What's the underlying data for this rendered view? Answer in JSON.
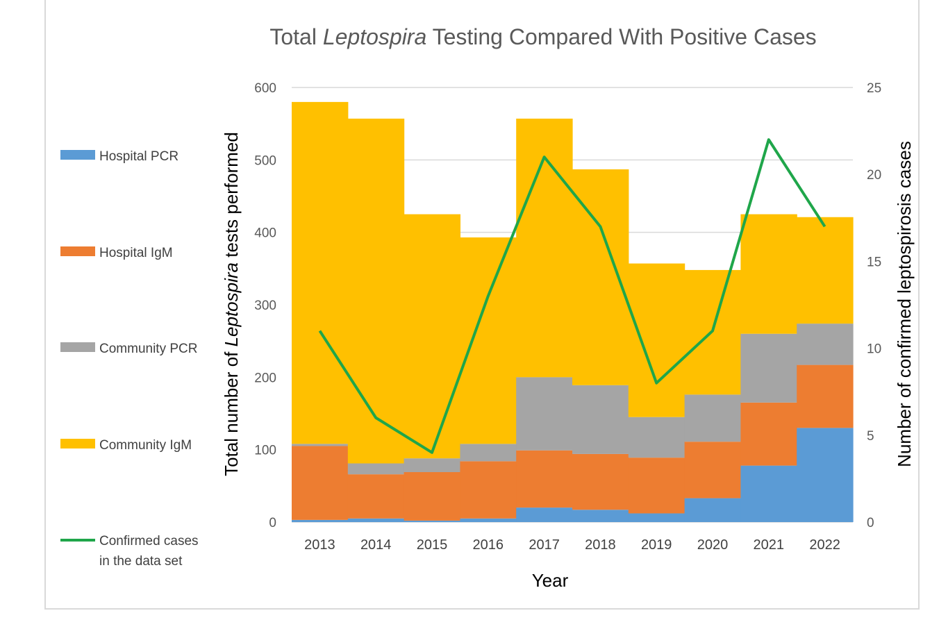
{
  "chart_data": {
    "type": "bar",
    "stacked": true,
    "title_parts": [
      {
        "text": "Total ",
        "italic": false
      },
      {
        "text": "Leptospira",
        "italic": true
      },
      {
        "text": " Testing Compared With Positive Cases",
        "italic": false
      }
    ],
    "xlabel": "Year",
    "ylabel_parts": [
      {
        "text": "Total number of ",
        "italic": false
      },
      {
        "text": "Leptospira",
        "italic": true
      },
      {
        "text": " tests performed",
        "italic": false
      }
    ],
    "y2label": "Number of confirmed leptospirosis cases",
    "categories": [
      "2013",
      "2014",
      "2015",
      "2016",
      "2017",
      "2018",
      "2019",
      "2020",
      "2021",
      "2022"
    ],
    "ylim": [
      0,
      600
    ],
    "yticks": [
      0,
      100,
      200,
      300,
      400,
      500,
      600
    ],
    "y2lim": [
      0,
      25
    ],
    "y2ticks": [
      0,
      5,
      10,
      15,
      20,
      25
    ],
    "grid": true,
    "legend_position": "left",
    "series": [
      {
        "name": "Hospital PCR",
        "kind": "bar",
        "color": "#5b9bd5",
        "values": [
          3,
          5,
          2,
          5,
          20,
          17,
          12,
          33,
          78,
          130
        ]
      },
      {
        "name": "Hospital IgM",
        "kind": "bar",
        "color": "#ed7d31",
        "values": [
          102,
          61,
          67,
          79,
          79,
          77,
          77,
          78,
          87,
          87
        ]
      },
      {
        "name": "Community PCR",
        "kind": "bar",
        "color": "#a5a5a5",
        "values": [
          3,
          15,
          19,
          24,
          101,
          95,
          56,
          65,
          95,
          57
        ]
      },
      {
        "name": "Community IgM",
        "kind": "bar",
        "color": "#ffc000",
        "values": [
          472,
          476,
          337,
          285,
          357,
          298,
          212,
          172,
          165,
          147
        ]
      },
      {
        "name": "Confirmed cases in the data set",
        "kind": "line",
        "axis": "right",
        "color": "#1fa64a",
        "values": [
          11,
          6,
          4,
          13,
          21,
          17,
          8,
          11,
          22,
          17
        ]
      }
    ]
  }
}
